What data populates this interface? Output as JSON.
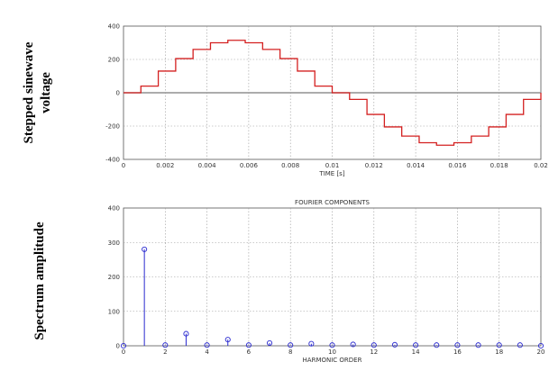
{
  "side_labels": {
    "top_line1": "Stepped sinewave",
    "top_line2": "voltage",
    "bottom": "Spectrum amplitude"
  },
  "colors": {
    "waveform": "#d42020",
    "stem": "#2a2ad0",
    "baseline": "#909090",
    "grid": "#9a9a9a"
  },
  "chart_data": [
    {
      "type": "line",
      "title": "",
      "xlabel": "TIME [s]",
      "ylabel": "",
      "xlim": [
        0,
        0.02
      ],
      "ylim": [
        -400,
        400
      ],
      "xticks": [
        0,
        0.002,
        0.004,
        0.006,
        0.008,
        0.01,
        0.012,
        0.014,
        0.016,
        0.018,
        0.02
      ],
      "xtick_labels": [
        "0",
        "0.002",
        "0.004",
        "0.006",
        "0.008",
        "0.01",
        "0.012",
        "0.014",
        "0.016",
        "0.018",
        "0.02"
      ],
      "yticks": [
        -400,
        -200,
        0,
        200,
        400
      ],
      "ytick_labels": [
        "-400",
        "-200",
        "0",
        "200",
        "400"
      ],
      "grid": true,
      "series": [
        {
          "type": "step",
          "x": [
            0,
            0.000833,
            0.001667,
            0.0025,
            0.003333,
            0.004167,
            0.005,
            0.005833,
            0.006667,
            0.0075,
            0.008333,
            0.009167,
            0.01,
            0.010833,
            0.011667,
            0.0125,
            0.013333,
            0.014167,
            0.015,
            0.015833,
            0.016667,
            0.0175,
            0.018333,
            0.019167,
            0.02
          ],
          "y": [
            0,
            40,
            130,
            205,
            260,
            300,
            315,
            300,
            260,
            205,
            130,
            40,
            0,
            -40,
            -130,
            -205,
            -260,
            -300,
            -315,
            -300,
            -260,
            -205,
            -130,
            -40,
            0
          ]
        }
      ]
    },
    {
      "type": "stem",
      "title": "FOURIER COMPONENTS",
      "xlabel": "HARMONIC ORDER",
      "ylabel": "",
      "xlim": [
        0,
        20
      ],
      "ylim": [
        0,
        400
      ],
      "xticks": [
        0,
        2,
        4,
        6,
        8,
        10,
        12,
        14,
        16,
        18,
        20
      ],
      "xtick_labels": [
        "0",
        "2",
        "4",
        "6",
        "8",
        "10",
        "12",
        "14",
        "16",
        "18",
        "20"
      ],
      "yticks": [
        0,
        100,
        200,
        300,
        400
      ],
      "ytick_labels": [
        "0",
        "100",
        "200",
        "300",
        "400"
      ],
      "grid": true,
      "x": [
        0,
        1,
        2,
        3,
        4,
        5,
        6,
        7,
        8,
        9,
        10,
        11,
        12,
        13,
        14,
        15,
        16,
        17,
        18,
        19,
        20
      ],
      "values": [
        0,
        280,
        2,
        35,
        2,
        18,
        2,
        8,
        2,
        6,
        2,
        4,
        2,
        3,
        2,
        2,
        2,
        2,
        2,
        2,
        0
      ]
    }
  ]
}
